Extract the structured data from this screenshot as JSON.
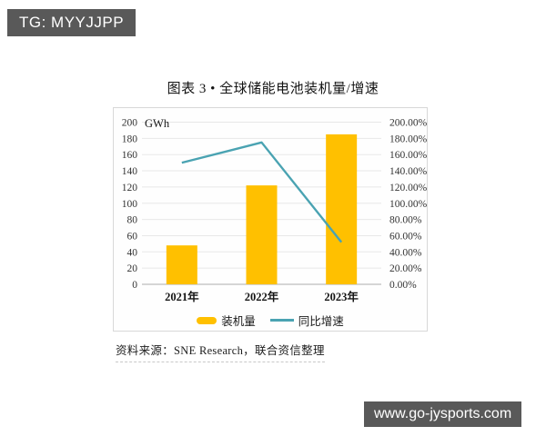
{
  "badges": {
    "telegram": "TG: MYYJJPP",
    "website": "www.go-jysports.com"
  },
  "figure": {
    "title": "图表 3 • 全球储能电池装机量/增速",
    "source": "资料来源：SNE Research，联合资信整理"
  },
  "chart_data": {
    "type": "bar+line combo",
    "title": "图表 3 • 全球储能电池装机量/增速",
    "categories": [
      "2021年",
      "2022年",
      "2023年"
    ],
    "series": [
      {
        "name": "装机量",
        "type": "bar",
        "axis": "left",
        "unit": "GWh",
        "values": [
          48,
          122,
          185
        ],
        "color": "#FFC000"
      },
      {
        "name": "同比增速",
        "type": "line",
        "axis": "right",
        "unit": "%",
        "values": [
          150,
          175,
          52
        ],
        "color": "#4AA3B2"
      }
    ],
    "left_axis": {
      "label": "GWh",
      "min": 0,
      "max": 200,
      "step": 20
    },
    "right_axis": {
      "min": 0,
      "max": 200,
      "step": 20,
      "suffix": "%",
      "decimals": 2
    },
    "grid": true,
    "legend_position": "bottom"
  }
}
